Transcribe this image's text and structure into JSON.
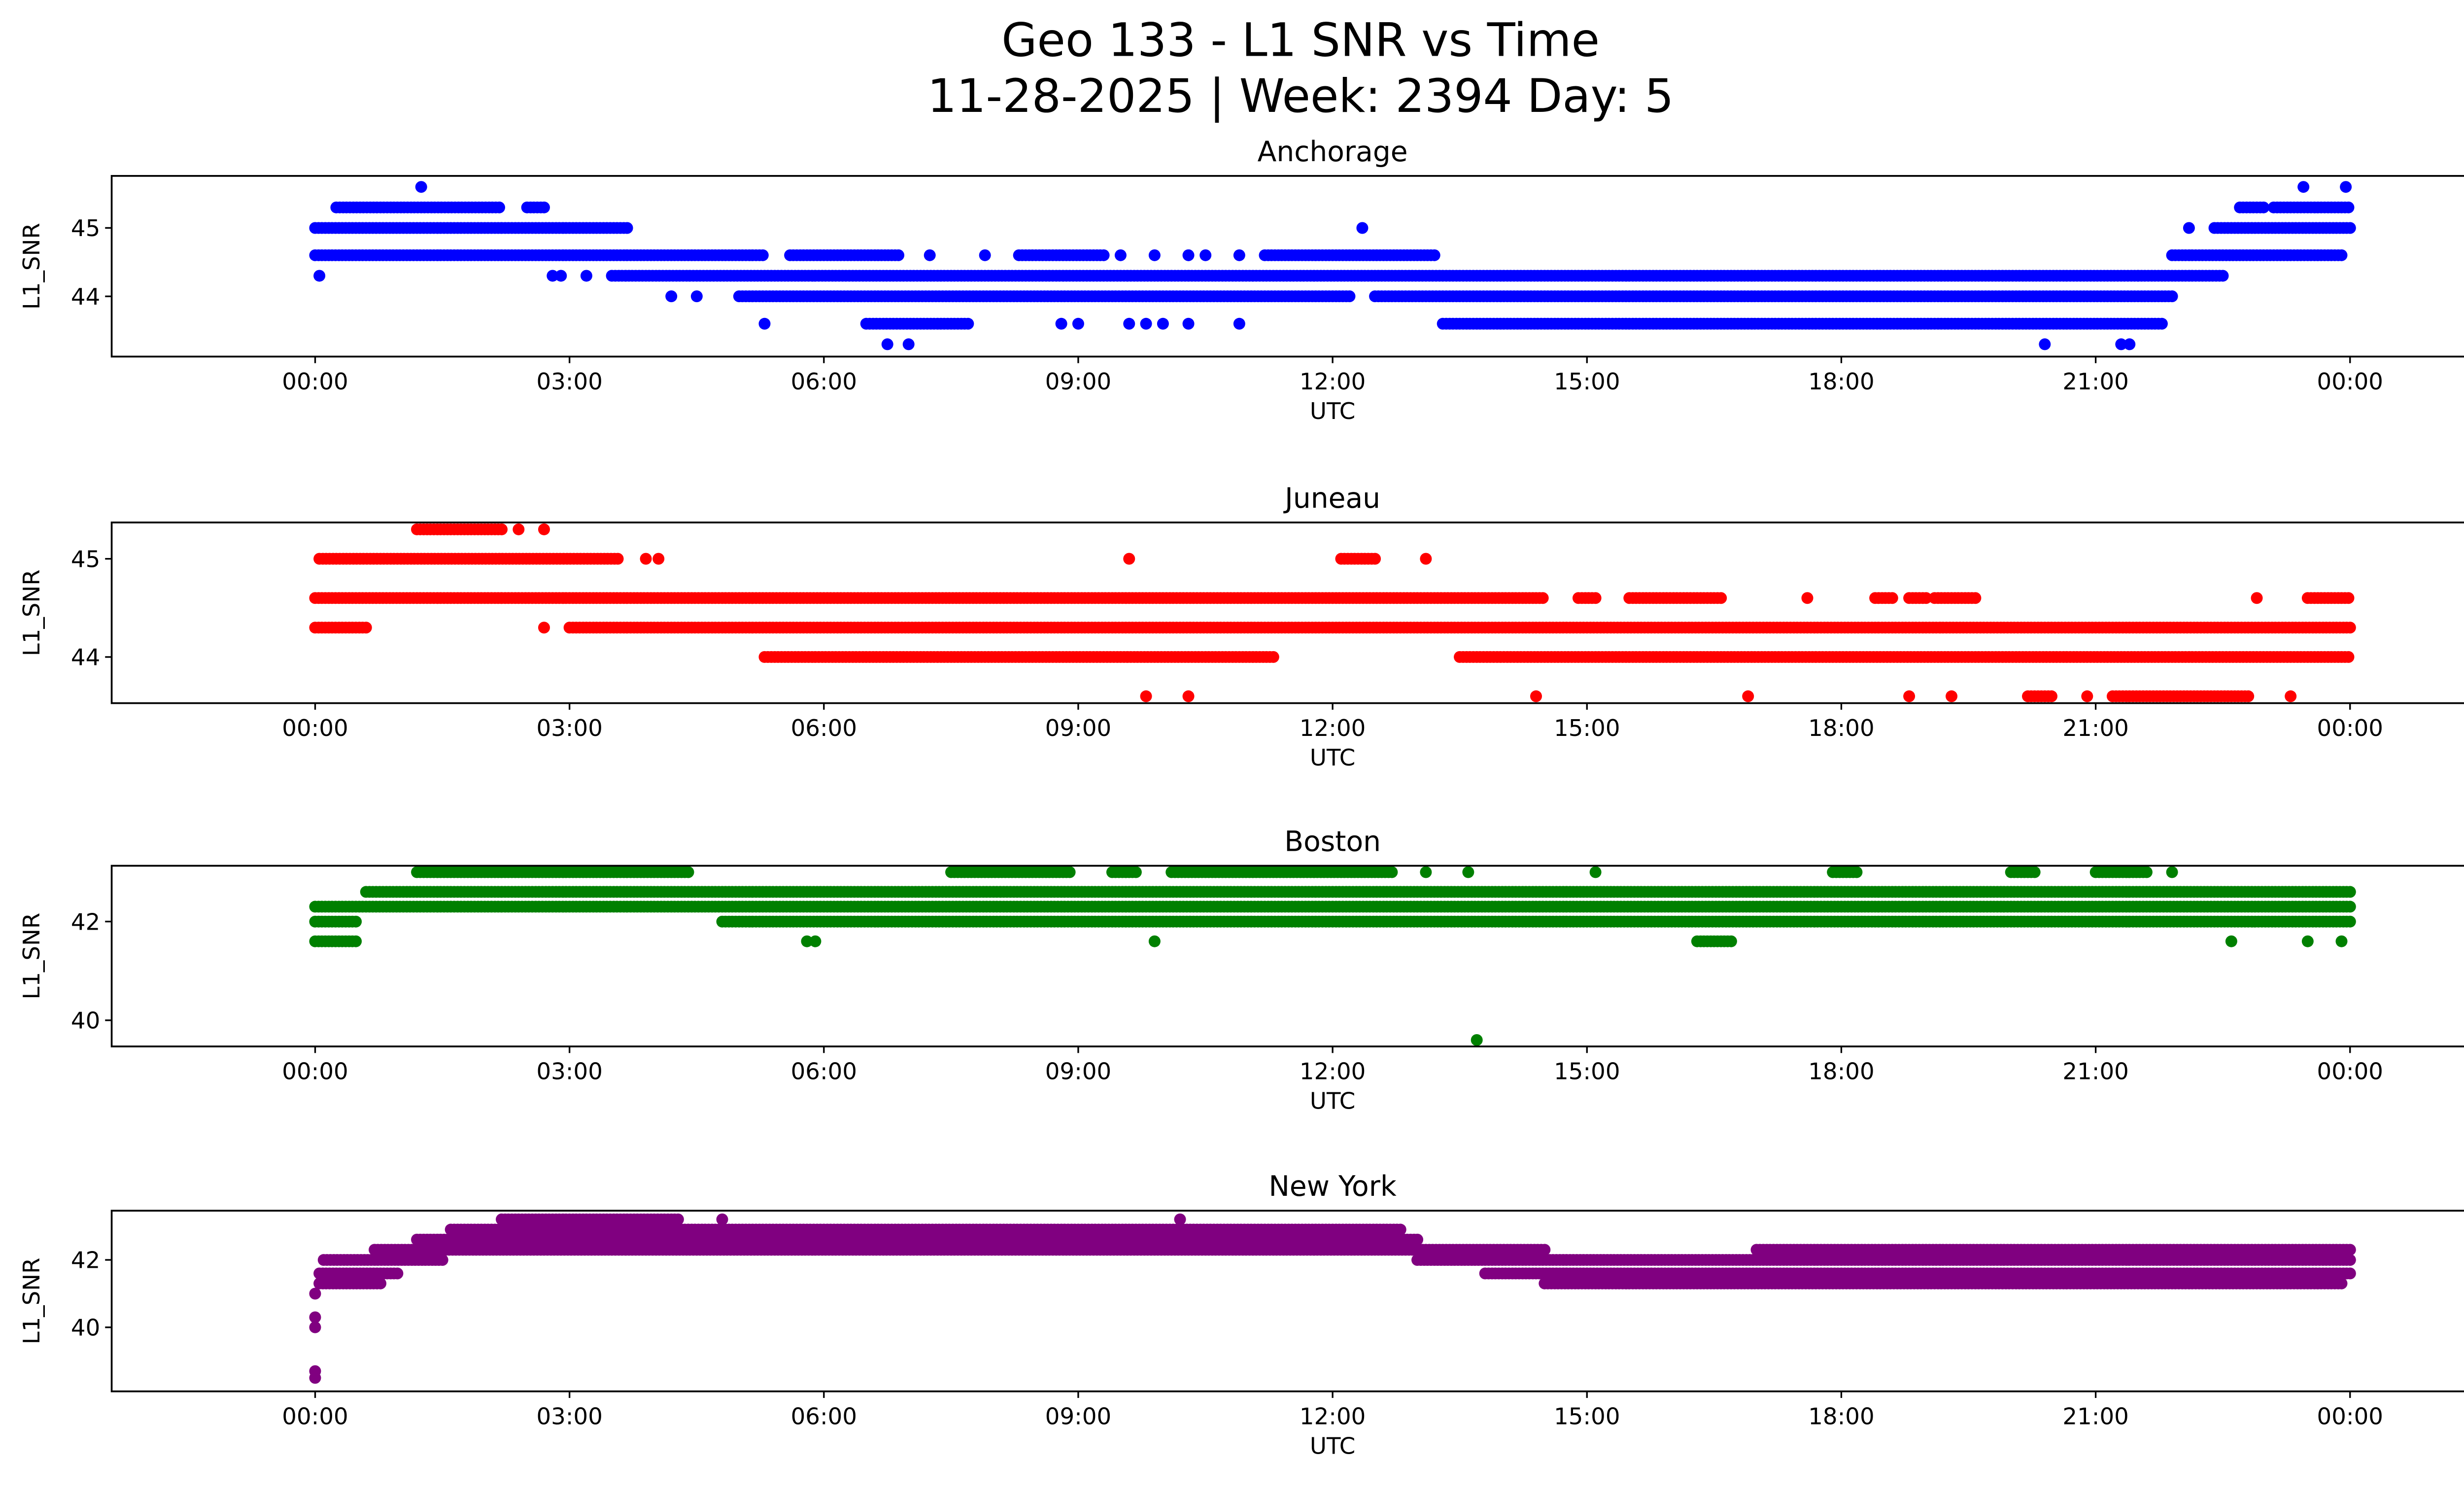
{
  "title_line1": "Geo 133 - L1 SNR vs Time",
  "title_line2": "11-28-2025 | Week: 2394 Day: 5",
  "chart_data": [
    {
      "type": "scatter",
      "title": "Anchorage",
      "xlabel": "UTC",
      "ylabel": "L1_SNR",
      "color": "#0000ff",
      "xlim": [
        -2.4,
        26.4
      ],
      "ylim": [
        43.12,
        45.76
      ],
      "yticks": [
        44,
        45
      ],
      "xticks": [
        {
          "h": 0,
          "label": "00:00"
        },
        {
          "h": 3,
          "label": "03:00"
        },
        {
          "h": 6,
          "label": "06:00"
        },
        {
          "h": 9,
          "label": "09:00"
        },
        {
          "h": 12,
          "label": "12:00"
        },
        {
          "h": 15,
          "label": "15:00"
        },
        {
          "h": 18,
          "label": "18:00"
        },
        {
          "h": 21,
          "label": "21:00"
        },
        {
          "h": 24,
          "label": "00:00"
        }
      ],
      "bands": [
        {
          "y": 45.6,
          "ranges": [],
          "points": [
            1.25,
            23.45,
            23.95
          ]
        },
        {
          "y": 45.3,
          "ranges": [
            [
              0.25,
              2.2
            ],
            [
              2.5,
              2.7
            ],
            [
              22.7,
              23.0
            ],
            [
              23.1,
              24
            ]
          ],
          "points": []
        },
        {
          "y": 45.0,
          "ranges": [
            [
              0,
              3.7
            ],
            [
              22.4,
              24
            ]
          ],
          "points": [
            12.35,
            22.1
          ]
        },
        {
          "y": 44.6,
          "ranges": [
            [
              0,
              5.3
            ],
            [
              5.6,
              6.9
            ],
            [
              8.3,
              9.3
            ],
            [
              11.2,
              13.2
            ],
            [
              21.9,
              23.9
            ]
          ],
          "points": [
            7.25,
            7.9,
            9.5,
            9.9,
            10.3,
            10.5,
            10.9
          ]
        },
        {
          "y": 44.3,
          "ranges": [
            [
              3.5,
              21.5
            ],
            [
              21.5,
              22.5
            ]
          ],
          "points": [
            0.05,
            2.8,
            2.9,
            3.2
          ]
        },
        {
          "y": 44.0,
          "ranges": [
            [
              5.0,
              12.2
            ],
            [
              12.5,
              21.9
            ]
          ],
          "points": [
            4.2,
            4.5
          ]
        },
        {
          "y": 43.6,
          "ranges": [
            [
              6.5,
              7.7
            ],
            [
              13.3,
              21.8
            ]
          ],
          "points": [
            5.3,
            8.8,
            9.0,
            9.6,
            9.8,
            10.0,
            10.3,
            10.9
          ]
        },
        {
          "y": 43.3,
          "ranges": [],
          "points": [
            6.75,
            7.0,
            20.4,
            21.3,
            21.4
          ]
        }
      ]
    },
    {
      "type": "scatter",
      "title": "Juneau",
      "xlabel": "UTC",
      "ylabel": "L1_SNR",
      "color": "#ff0000",
      "xlim": [
        -2.4,
        26.4
      ],
      "ylim": [
        43.53,
        45.37
      ],
      "yticks": [
        44,
        45
      ],
      "xticks": [
        {
          "h": 0,
          "label": "00:00"
        },
        {
          "h": 3,
          "label": "03:00"
        },
        {
          "h": 6,
          "label": "06:00"
        },
        {
          "h": 9,
          "label": "09:00"
        },
        {
          "h": 12,
          "label": "12:00"
        },
        {
          "h": 15,
          "label": "15:00"
        },
        {
          "h": 18,
          "label": "18:00"
        },
        {
          "h": 21,
          "label": "21:00"
        },
        {
          "h": 24,
          "label": "00:00"
        }
      ],
      "bands": [
        {
          "y": 45.3,
          "ranges": [
            [
              1.2,
              2.2
            ]
          ],
          "points": [
            2.4,
            2.7
          ]
        },
        {
          "y": 45.0,
          "ranges": [
            [
              0.05,
              3.6
            ],
            [
              12.1,
              12.5
            ]
          ],
          "points": [
            3.9,
            4.05,
            9.6,
            13.1
          ]
        },
        {
          "y": 44.6,
          "ranges": [
            [
              0,
              14.5
            ],
            [
              14.9,
              15.1
            ],
            [
              15.5,
              16.6
            ],
            [
              18.4,
              18.6
            ],
            [
              18.8,
              19.0
            ],
            [
              19.1,
              19.6
            ],
            [
              23.5,
              24
            ]
          ],
          "points": [
            17.6,
            22.9
          ]
        },
        {
          "y": 44.3,
          "ranges": [
            [
              0,
              0.6
            ],
            [
              3.0,
              24
            ]
          ],
          "points": [
            2.7
          ]
        },
        {
          "y": 44.0,
          "ranges": [
            [
              5.3,
              11.3
            ],
            [
              13.5,
              24
            ]
          ],
          "points": []
        },
        {
          "y": 43.6,
          "ranges": [
            [
              20.2,
              20.5
            ],
            [
              21.2,
              22.8
            ]
          ],
          "points": [
            9.8,
            10.3,
            14.4,
            16.9,
            18.8,
            19.3,
            20.9,
            23.3
          ]
        }
      ]
    },
    {
      "type": "scatter",
      "title": "Boston",
      "xlabel": "UTC",
      "ylabel": "L1_SNR",
      "color": "#008000",
      "xlim": [
        -2.4,
        26.4
      ],
      "ylim": [
        39.47,
        43.13
      ],
      "yticks": [
        40,
        42
      ],
      "xticks": [
        {
          "h": 0,
          "label": "00:00"
        },
        {
          "h": 3,
          "label": "03:00"
        },
        {
          "h": 6,
          "label": "06:00"
        },
        {
          "h": 9,
          "label": "09:00"
        },
        {
          "h": 12,
          "label": "12:00"
        },
        {
          "h": 15,
          "label": "15:00"
        },
        {
          "h": 18,
          "label": "18:00"
        },
        {
          "h": 21,
          "label": "21:00"
        },
        {
          "h": 24,
          "label": "00:00"
        }
      ],
      "bands": [
        {
          "y": 43.0,
          "ranges": [
            [
              1.2,
              4.4
            ],
            [
              7.5,
              8.9
            ],
            [
              9.4,
              9.7
            ],
            [
              10.1,
              12.7
            ],
            [
              17.9,
              18.2
            ],
            [
              20.0,
              20.3
            ],
            [
              21.0,
              21.6
            ]
          ],
          "points": [
            13.1,
            13.6,
            15.1,
            21.9
          ]
        },
        {
          "y": 42.6,
          "ranges": [
            [
              0.6,
              24
            ]
          ],
          "points": []
        },
        {
          "y": 42.3,
          "ranges": [
            [
              0,
              24
            ]
          ],
          "points": []
        },
        {
          "y": 42.0,
          "ranges": [
            [
              0,
              0.5
            ],
            [
              4.8,
              24
            ]
          ],
          "points": []
        },
        {
          "y": 41.6,
          "ranges": [
            [
              0,
              0.5
            ],
            [
              16.3,
              16.7
            ]
          ],
          "points": [
            5.8,
            5.9,
            9.9,
            22.6,
            23.5,
            23.9
          ]
        },
        {
          "y": 39.6,
          "ranges": [],
          "points": [
            13.7
          ]
        }
      ]
    },
    {
      "type": "scatter",
      "title": "New York",
      "xlabel": "UTC",
      "ylabel": "L1_SNR",
      "color": "#800080",
      "xlim": [
        -2.4,
        26.4
      ],
      "ylim": [
        38.1,
        43.46
      ],
      "yticks": [
        40,
        42
      ],
      "xticks": [
        {
          "h": 0,
          "label": "00:00"
        },
        {
          "h": 3,
          "label": "03:00"
        },
        {
          "h": 6,
          "label": "06:00"
        },
        {
          "h": 9,
          "label": "09:00"
        },
        {
          "h": 12,
          "label": "12:00"
        },
        {
          "h": 15,
          "label": "15:00"
        },
        {
          "h": 18,
          "label": "18:00"
        },
        {
          "h": 21,
          "label": "21:00"
        },
        {
          "h": 24,
          "label": "00:00"
        }
      ],
      "bands": [
        {
          "y": 43.2,
          "ranges": [
            [
              2.2,
              4.3
            ]
          ],
          "points": [
            4.8,
            10.2
          ]
        },
        {
          "y": 42.9,
          "ranges": [
            [
              1.6,
              12.8
            ]
          ],
          "points": []
        },
        {
          "y": 42.6,
          "ranges": [
            [
              1.2,
              13.0
            ]
          ],
          "points": []
        },
        {
          "y": 42.3,
          "ranges": [
            [
              0.7,
              14.5
            ],
            [
              17,
              24
            ]
          ],
          "points": []
        },
        {
          "y": 42.0,
          "ranges": [
            [
              0.1,
              1.5
            ],
            [
              13.0,
              24
            ]
          ],
          "points": []
        },
        {
          "y": 41.6,
          "ranges": [
            [
              0.05,
              1.0
            ],
            [
              13.8,
              24
            ]
          ],
          "points": []
        },
        {
          "y": 41.3,
          "ranges": [
            [
              0.05,
              0.8
            ],
            [
              14.5,
              23.9
            ]
          ],
          "points": []
        },
        {
          "y": 41.0,
          "ranges": [],
          "points": [
            0.0
          ]
        },
        {
          "y": 40.3,
          "ranges": [],
          "points": [
            0.0
          ]
        },
        {
          "y": 40.0,
          "ranges": [],
          "points": [
            0.0
          ]
        },
        {
          "y": 38.7,
          "ranges": [],
          "points": [
            0.0
          ]
        },
        {
          "y": 38.5,
          "ranges": [],
          "points": [
            0.0
          ]
        }
      ]
    }
  ]
}
